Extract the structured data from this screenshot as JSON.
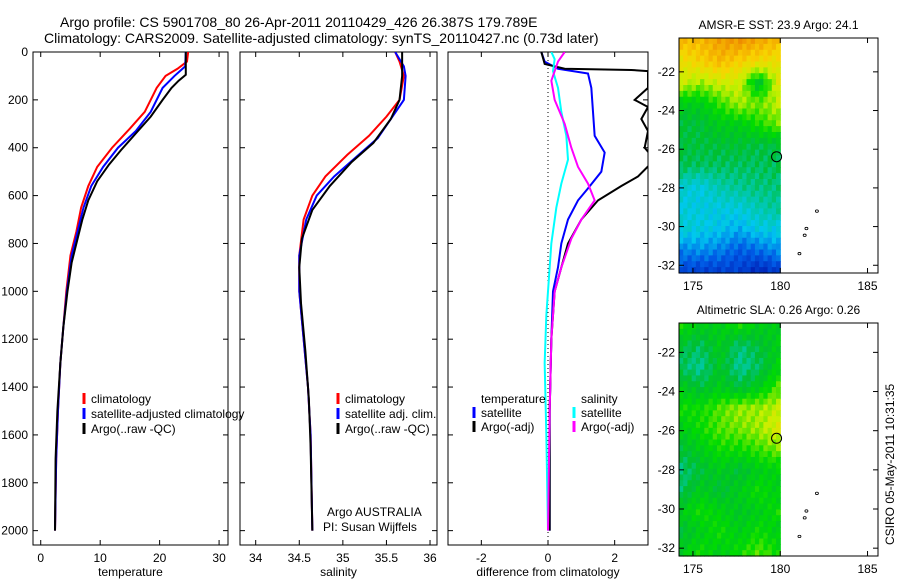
{
  "title_line1": "Argo profile: CS 5901708_80 26-Apr-2011 20110429_426 26.387S 179.789E",
  "title_line2": "Climatology: CARS2009. Satellite-adjusted climatology: synTS_20110427.nc (0.73d later)",
  "footer_vertical": "CSIRO 05-May-2011 10:31:35",
  "colors": {
    "climatology": "#ff0000",
    "satellite": "#0000ff",
    "argo": "#000000",
    "sal_satellite": "#00ffff",
    "sal_argo": "#ff00ff"
  },
  "chart_data": [
    {
      "type": "line",
      "id": "temperature",
      "xlabel": "temperature",
      "ylabel": "",
      "xlim": [
        -1.3,
        31.5
      ],
      "ylim": [
        0,
        2060
      ],
      "y_reversed": true,
      "xticks": [
        0,
        10,
        20,
        30
      ],
      "yticks": [
        0,
        200,
        400,
        600,
        800,
        1000,
        1200,
        1400,
        1600,
        1800,
        2000
      ],
      "legend": [
        "climatology",
        "satellite-adjusted climatology",
        "Argo(..raw -QC)"
      ],
      "series": [
        {
          "name": "climatology",
          "color": "#ff0000",
          "points": [
            [
              24.8,
              0
            ],
            [
              24.6,
              40
            ],
            [
              23,
              70
            ],
            [
              21,
              100
            ],
            [
              19.5,
              150
            ],
            [
              17.5,
              250
            ],
            [
              15,
              320
            ],
            [
              12,
              400
            ],
            [
              9.5,
              480
            ],
            [
              8,
              560
            ],
            [
              6.8,
              650
            ],
            [
              6,
              750
            ],
            [
              5,
              850
            ],
            [
              4.3,
              1000
            ],
            [
              3.8,
              1150
            ],
            [
              3.3,
              1300
            ],
            [
              2.9,
              1500
            ],
            [
              2.6,
              1700
            ],
            [
              2.4,
              2000
            ]
          ]
        },
        {
          "name": "satellite-adjusted climatology",
          "color": "#0000ff",
          "points": [
            [
              24.4,
              0
            ],
            [
              24.3,
              60
            ],
            [
              22.5,
              100
            ],
            [
              20.5,
              150
            ],
            [
              18.5,
              250
            ],
            [
              16,
              330
            ],
            [
              13,
              400
            ],
            [
              10.5,
              480
            ],
            [
              8.5,
              560
            ],
            [
              7.2,
              650
            ],
            [
              6.2,
              750
            ],
            [
              5.2,
              850
            ],
            [
              4.4,
              1000
            ],
            [
              3.8,
              1150
            ],
            [
              3.3,
              1300
            ],
            [
              2.9,
              1500
            ],
            [
              2.6,
              1700
            ],
            [
              2.4,
              2000
            ]
          ]
        },
        {
          "name": "Argo(..raw -QC)",
          "color": "#000000",
          "points": [
            [
              24.4,
              0
            ],
            [
              24.4,
              95
            ],
            [
              23.2,
              120
            ],
            [
              22,
              150
            ],
            [
              20.5,
              200
            ],
            [
              18.5,
              270
            ],
            [
              16,
              340
            ],
            [
              13.5,
              410
            ],
            [
              11.5,
              470
            ],
            [
              9.5,
              540
            ],
            [
              8,
              620
            ],
            [
              7,
              700
            ],
            [
              6.2,
              780
            ],
            [
              5.2,
              880
            ],
            [
              4.5,
              1000
            ],
            [
              3.8,
              1150
            ],
            [
              3.3,
              1300
            ],
            [
              2.8,
              1500
            ],
            [
              2.5,
              1700
            ],
            [
              2.4,
              2000
            ]
          ]
        }
      ]
    },
    {
      "type": "line",
      "id": "salinity",
      "xlabel": "salinity",
      "xlim": [
        33.82,
        36.08
      ],
      "ylim": [
        0,
        2060
      ],
      "y_reversed": true,
      "xticks": [
        34,
        34.5,
        35,
        35.5,
        36
      ],
      "legend": [
        "climatology",
        "satellite adj. clim.",
        "Argo(..raw -QC)"
      ],
      "annotation": [
        "Argo AUSTRALIA",
        "PI: Susan Wijffels"
      ],
      "series": [
        {
          "name": "climatology",
          "color": "#ff0000",
          "points": [
            [
              35.6,
              0
            ],
            [
              35.65,
              40
            ],
            [
              35.7,
              100
            ],
            [
              35.65,
              200
            ],
            [
              35.5,
              270
            ],
            [
              35.3,
              350
            ],
            [
              35.05,
              430
            ],
            [
              34.8,
              520
            ],
            [
              34.65,
              600
            ],
            [
              34.55,
              700
            ],
            [
              34.5,
              850
            ],
            [
              34.5,
              1000
            ],
            [
              34.55,
              1200
            ],
            [
              34.6,
              1400
            ],
            [
              34.63,
              1600
            ],
            [
              34.65,
              2000
            ]
          ]
        },
        {
          "name": "satellite adj. clim.",
          "color": "#0000ff",
          "points": [
            [
              35.6,
              0
            ],
            [
              35.7,
              60
            ],
            [
              35.72,
              100
            ],
            [
              35.7,
              200
            ],
            [
              35.55,
              280
            ],
            [
              35.4,
              360
            ],
            [
              35.15,
              440
            ],
            [
              34.9,
              520
            ],
            [
              34.7,
              600
            ],
            [
              34.58,
              700
            ],
            [
              34.5,
              850
            ],
            [
              34.5,
              1000
            ],
            [
              34.55,
              1200
            ],
            [
              34.6,
              1400
            ],
            [
              34.63,
              1600
            ],
            [
              34.65,
              2000
            ]
          ]
        },
        {
          "name": "Argo(..raw -QC)",
          "color": "#000000",
          "points": [
            [
              35.68,
              0
            ],
            [
              35.68,
              100
            ],
            [
              35.65,
              200
            ],
            [
              35.55,
              280
            ],
            [
              35.35,
              380
            ],
            [
              35.1,
              460
            ],
            [
              34.85,
              560
            ],
            [
              34.65,
              660
            ],
            [
              34.53,
              780
            ],
            [
              34.5,
              900
            ],
            [
              34.52,
              1050
            ],
            [
              34.57,
              1250
            ],
            [
              34.61,
              1450
            ],
            [
              34.63,
              1650
            ],
            [
              34.65,
              2000
            ]
          ]
        }
      ]
    },
    {
      "type": "line",
      "id": "difference",
      "xlabel": "difference from climatology",
      "xlim": [
        -3,
        3
      ],
      "ylim": [
        0,
        2060
      ],
      "y_reversed": true,
      "xticks": [
        -2,
        0,
        2
      ],
      "zero_line": "dotted",
      "legend_temperature": {
        "title": "temperature",
        "items": [
          "satellite",
          "Argo(-adj)"
        ]
      },
      "legend_salinity": {
        "title": "salinity",
        "items": [
          "satellite",
          "Argo(-adj)"
        ]
      },
      "series": [
        {
          "name": "temperature satellite",
          "color": "#0000ff",
          "points": [
            [
              -0.2,
              0
            ],
            [
              -0.1,
              40
            ],
            [
              0.3,
              70
            ],
            [
              1.2,
              90
            ],
            [
              1.3,
              150
            ],
            [
              1.35,
              250
            ],
            [
              1.4,
              350
            ],
            [
              1.7,
              420
            ],
            [
              1.6,
              500
            ],
            [
              1.2,
              570
            ],
            [
              0.9,
              620
            ],
            [
              0.6,
              700
            ],
            [
              0.4,
              800
            ],
            [
              0.3,
              900
            ],
            [
              0.15,
              1000
            ],
            [
              0.1,
              1200
            ],
            [
              0.05,
              1500
            ],
            [
              0.05,
              2000
            ]
          ]
        },
        {
          "name": "temperature Argo(-adj)",
          "color": "#000000",
          "points": [
            [
              -0.2,
              0
            ],
            [
              -0.1,
              50
            ],
            [
              0.5,
              70
            ],
            [
              2.5,
              75
            ],
            [
              3.0,
              80
            ],
            [
              3.0,
              150
            ],
            [
              2.6,
              200
            ],
            [
              3.0,
              230
            ],
            [
              2.8,
              280
            ],
            [
              3.0,
              330
            ],
            [
              2.9,
              400
            ],
            [
              3.2,
              450
            ],
            [
              2.7,
              520
            ],
            [
              2.2,
              560
            ],
            [
              1.5,
              620
            ],
            [
              1.0,
              700
            ],
            [
              0.6,
              800
            ],
            [
              0.4,
              900
            ],
            [
              0.2,
              1000
            ],
            [
              0.1,
              1200
            ],
            [
              0.05,
              1500
            ],
            [
              0.05,
              2000
            ]
          ]
        },
        {
          "name": "salinity satellite",
          "color": "#00ffff",
          "points": [
            [
              0.1,
              0
            ],
            [
              0.2,
              30
            ],
            [
              0.15,
              80
            ],
            [
              0.3,
              150
            ],
            [
              0.4,
              250
            ],
            [
              0.55,
              350
            ],
            [
              0.6,
              450
            ],
            [
              0.4,
              550
            ],
            [
              0.25,
              650
            ],
            [
              0.1,
              800
            ],
            [
              0.05,
              900
            ],
            [
              -0.05,
              1100
            ],
            [
              -0.1,
              1300
            ],
            [
              -0.05,
              1600
            ],
            [
              0,
              2000
            ]
          ]
        },
        {
          "name": "salinity Argo(-adj)",
          "color": "#ff00ff",
          "points": [
            [
              0.5,
              0
            ],
            [
              0.3,
              40
            ],
            [
              0.1,
              120
            ],
            [
              0.2,
              200
            ],
            [
              0.5,
              300
            ],
            [
              0.7,
              400
            ],
            [
              0.9,
              480
            ],
            [
              1.2,
              550
            ],
            [
              1.4,
              620
            ],
            [
              1.0,
              700
            ],
            [
              0.7,
              780
            ],
            [
              0.4,
              900
            ],
            [
              0.2,
              1000
            ],
            [
              0.1,
              1200
            ],
            [
              0.05,
              1500
            ],
            [
              0,
              2000
            ]
          ]
        }
      ]
    },
    {
      "type": "heatmap",
      "id": "sst_map",
      "title": "AMSR-E SST: 23.9 Argo: 24.1",
      "xlim": [
        174.2,
        185.6
      ],
      "ylim": [
        -32.4,
        -20.25
      ],
      "xticks": [
        175,
        180,
        185
      ],
      "yticks": [
        -22,
        -24,
        -26,
        -28,
        -30,
        -32
      ],
      "ytick_labels": [
        "-22",
        "-24",
        "-26",
        "-28",
        "-30",
        "-32"
      ],
      "data_lon": [
        174.2,
        180.0
      ],
      "data_lat": [
        -20.25,
        -32.4
      ],
      "field": [
        [
          0.85,
          0.85,
          0.9,
          0.92,
          0.88,
          0.85
        ],
        [
          0.75,
          0.8,
          0.85,
          0.8,
          0.78,
          0.75
        ],
        [
          0.7,
          0.65,
          0.7,
          0.7,
          0.45,
          0.72
        ],
        [
          0.5,
          0.5,
          0.58,
          0.66,
          0.62,
          0.68
        ],
        [
          0.45,
          0.45,
          0.5,
          0.5,
          0.56,
          0.62
        ],
        [
          0.45,
          0.45,
          0.45,
          0.46,
          0.44,
          0.45
        ],
        [
          0.43,
          0.42,
          0.42,
          0.42,
          0.42,
          0.43
        ],
        [
          0.32,
          0.3,
          0.36,
          0.38,
          0.4,
          0.4
        ],
        [
          0.3,
          0.3,
          0.3,
          0.31,
          0.35,
          0.38
        ],
        [
          0.32,
          0.3,
          0.28,
          0.25,
          0.3,
          0.3
        ],
        [
          0.2,
          0.22,
          0.2,
          0.15,
          0.18,
          0.22
        ],
        [
          0.12,
          0.1,
          0.1,
          0.1,
          0.05,
          0.1
        ]
      ],
      "argo_position": [
        179.79,
        -26.387
      ],
      "islands": [
        [
          182.1,
          -29.2
        ],
        [
          181.5,
          -30.1
        ],
        [
          181.4,
          -30.45
        ],
        [
          181.1,
          -31.4
        ]
      ]
    },
    {
      "type": "heatmap",
      "id": "sla_map",
      "title": "Altimetric SLA: 0.26 Argo: 0.26",
      "xlim": [
        174.2,
        185.6
      ],
      "ylim": [
        -32.4,
        -20.5
      ],
      "xticks": [
        175,
        180,
        185
      ],
      "yticks": [
        -22,
        -24,
        -26,
        -28,
        -30,
        -32
      ],
      "ytick_labels": [
        "-22",
        "-24",
        "-26",
        "-28",
        "-30",
        "-32"
      ],
      "data_lon": [
        174.2,
        180.0
      ],
      "data_lat": [
        -20.5,
        -32.4
      ],
      "field": [
        [
          0.55,
          0.5,
          0.5,
          0.55,
          0.5,
          0.5
        ],
        [
          0.45,
          0.42,
          0.5,
          0.4,
          0.45,
          0.5
        ],
        [
          0.42,
          0.38,
          0.48,
          0.38,
          0.42,
          0.52
        ],
        [
          0.5,
          0.45,
          0.5,
          0.45,
          0.5,
          0.6
        ],
        [
          0.55,
          0.55,
          0.6,
          0.65,
          0.65,
          0.68
        ],
        [
          0.5,
          0.55,
          0.6,
          0.62,
          0.65,
          0.72
        ],
        [
          0.45,
          0.5,
          0.55,
          0.55,
          0.58,
          0.62
        ],
        [
          0.4,
          0.45,
          0.5,
          0.45,
          0.5,
          0.52
        ],
        [
          0.42,
          0.5,
          0.45,
          0.5,
          0.55,
          0.5
        ],
        [
          0.5,
          0.55,
          0.52,
          0.48,
          0.5,
          0.55
        ],
        [
          0.45,
          0.5,
          0.55,
          0.5,
          0.55,
          0.5
        ],
        [
          0.5,
          0.55,
          0.5,
          0.55,
          0.6,
          0.55
        ]
      ],
      "argo_position": [
        179.79,
        -26.387
      ],
      "islands": [
        [
          182.1,
          -29.2
        ],
        [
          181.5,
          -30.1
        ],
        [
          181.4,
          -30.45
        ],
        [
          181.1,
          -31.4
        ]
      ]
    }
  ]
}
